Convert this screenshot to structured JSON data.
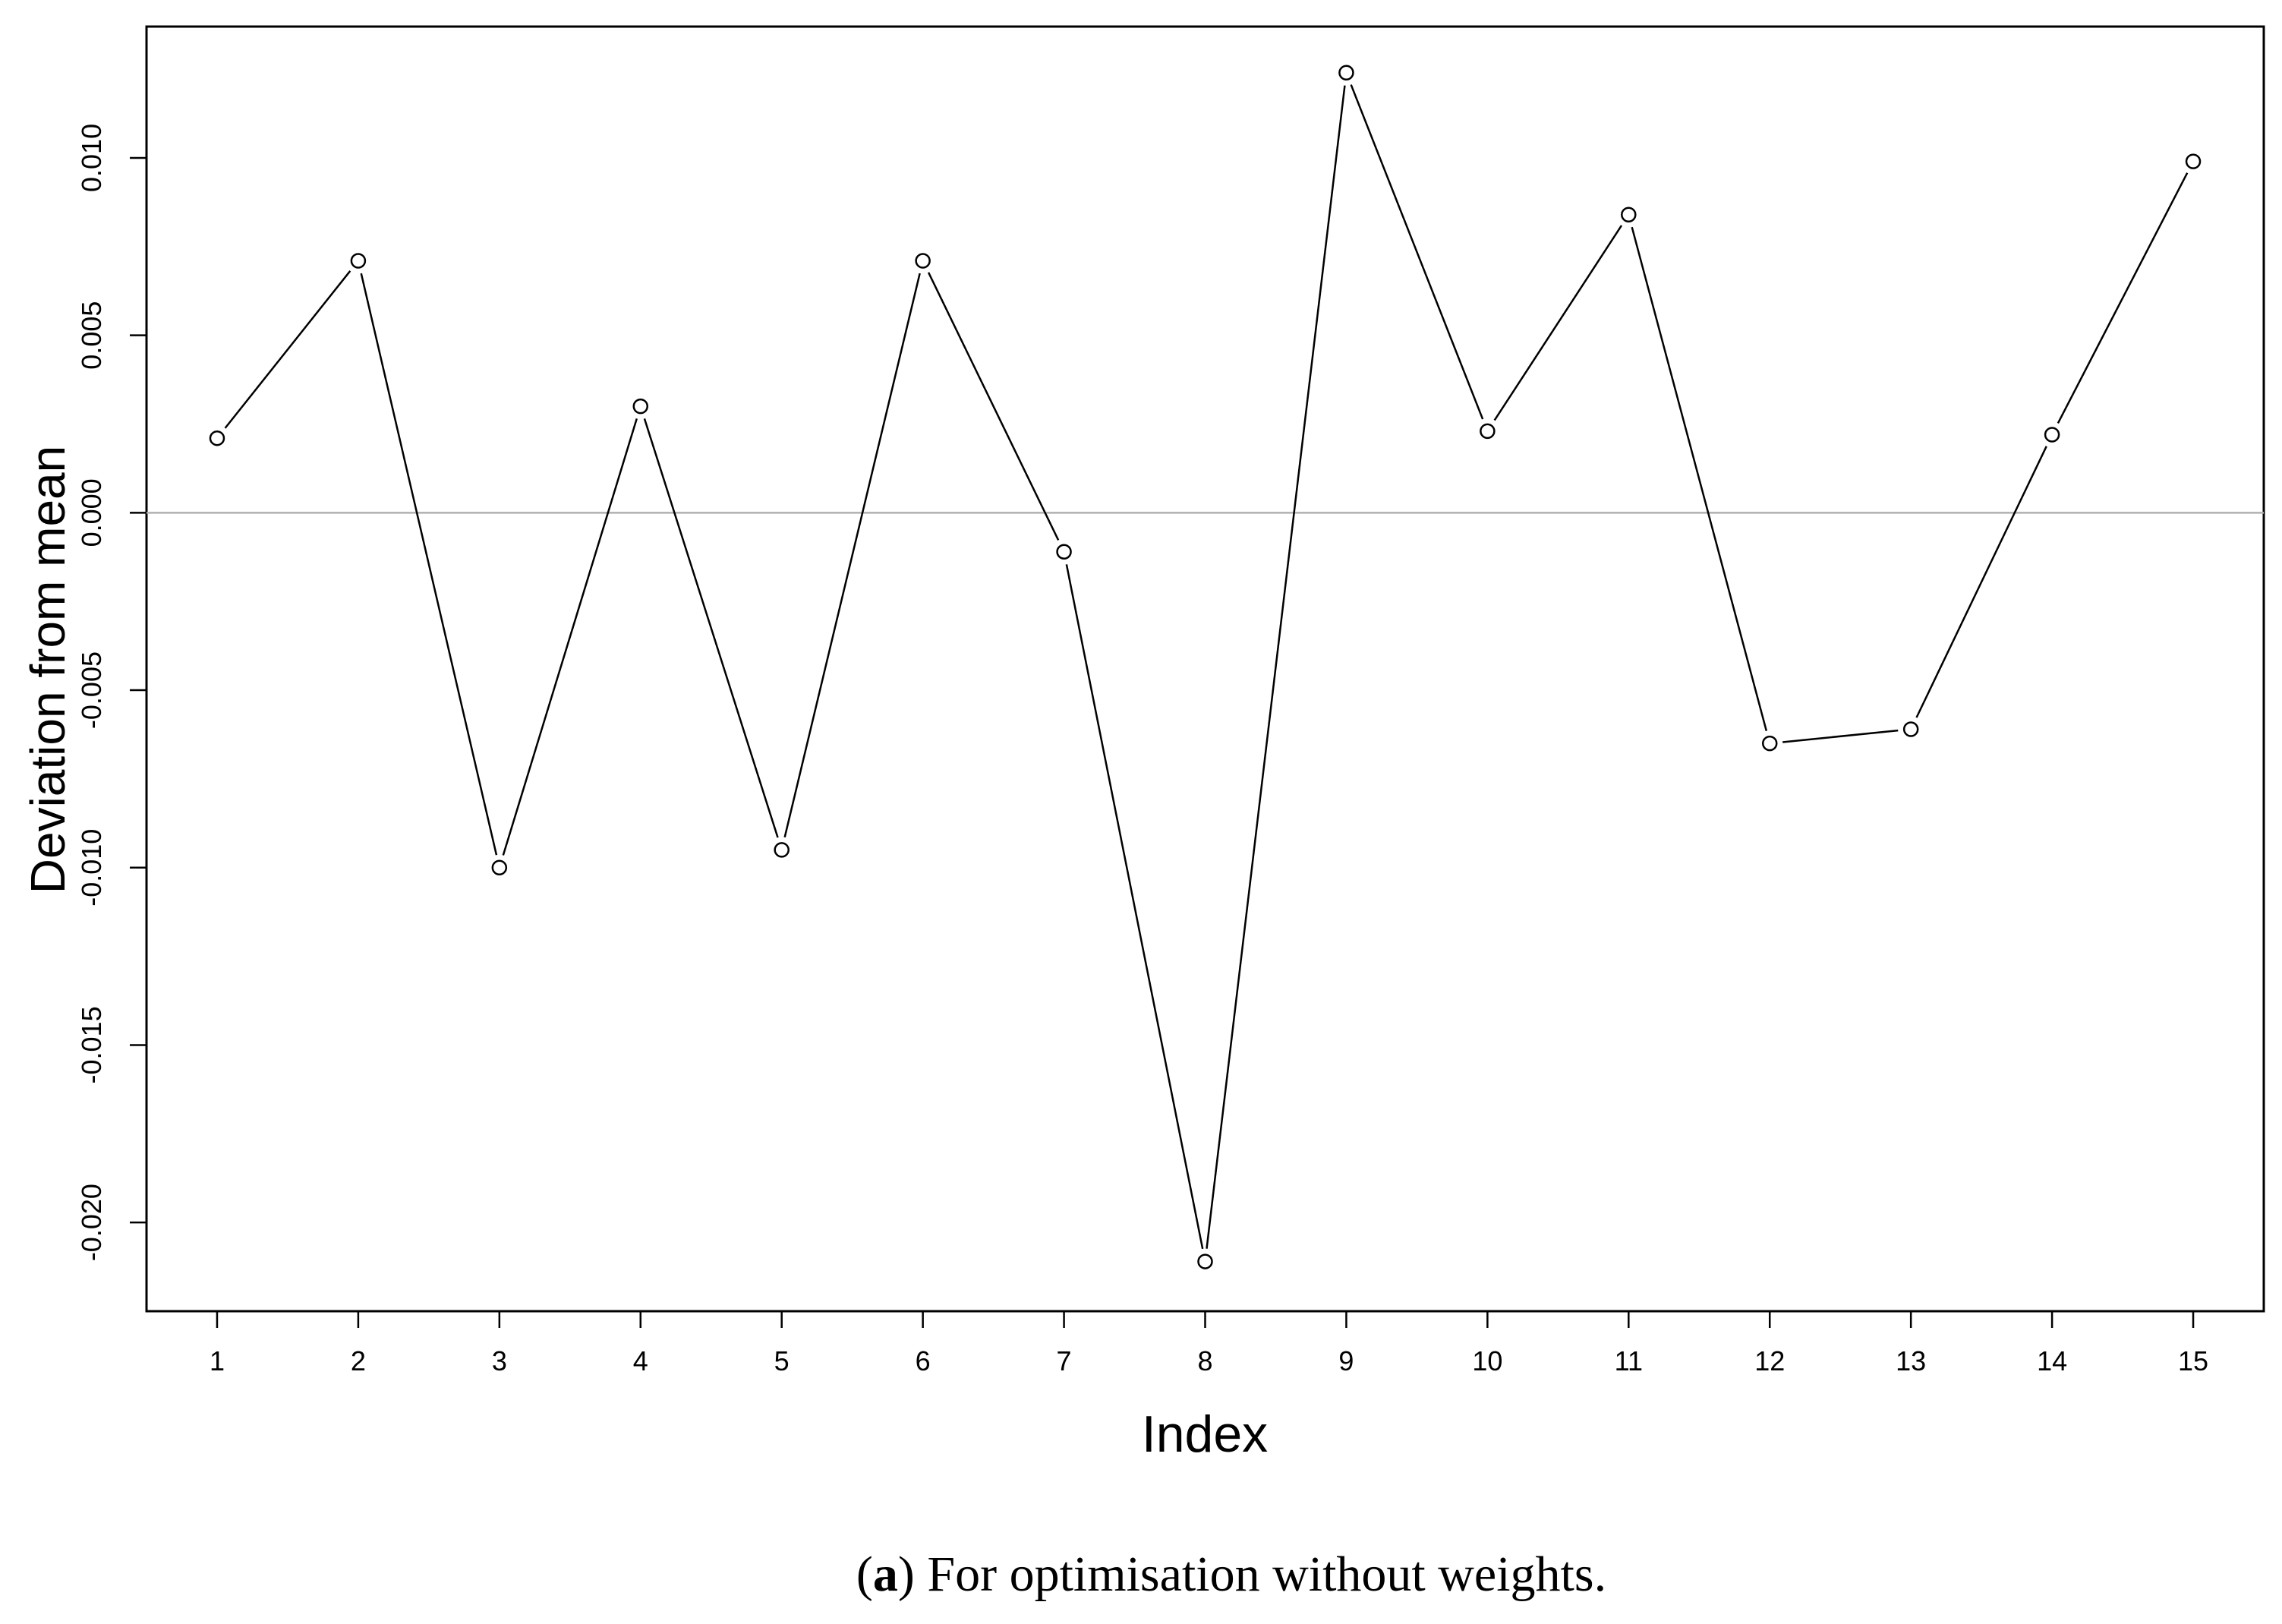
{
  "chart_data": {
    "type": "line",
    "xlabel": "Index",
    "ylabel": "Deviation from mean",
    "x": [
      1,
      2,
      3,
      4,
      5,
      6,
      7,
      8,
      9,
      10,
      11,
      12,
      13,
      14,
      15
    ],
    "values": [
      0.0021,
      0.0071,
      -0.01,
      0.003,
      -0.0095,
      0.0071,
      -0.0011,
      -0.0211,
      0.0124,
      0.0023,
      0.0084,
      -0.0065,
      -0.0061,
      0.0022,
      0.0099
    ],
    "x_tick_labels": [
      "1",
      "2",
      "3",
      "4",
      "5",
      "6",
      "7",
      "8",
      "9",
      "10",
      "11",
      "12",
      "13",
      "14",
      "15"
    ],
    "y_ticks": [
      -0.02,
      -0.015,
      -0.01,
      -0.005,
      0.0,
      0.005,
      0.01
    ],
    "y_tick_labels": [
      "-0.020",
      "-0.015",
      "-0.010",
      "-0.005",
      "0.000",
      "0.005",
      "0.010"
    ],
    "xlim": [
      0.5,
      15.5
    ],
    "ylim": [
      -0.0225,
      0.0137
    ],
    "reference_line": 0.0,
    "marker": "open-circle",
    "line_color": "#000000",
    "reference_line_color": "#b0b0b0",
    "grid": false
  },
  "caption": {
    "label": "a",
    "text": "For optimisation without weights."
  }
}
